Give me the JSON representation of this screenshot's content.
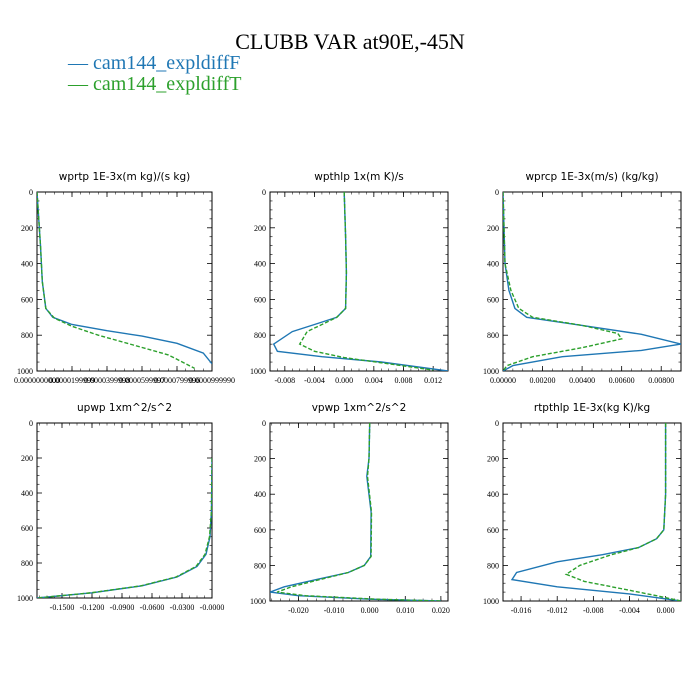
{
  "title": "CLUBB VAR at90E,-45N",
  "legend": [
    {
      "label": "— cam144_expldiffF",
      "color": "#1f77b4"
    },
    {
      "label": "— cam144_expldiffT",
      "color": "#2ca02c"
    }
  ],
  "chart_data": [
    {
      "type": "line",
      "title": "wprtp  1E-3x(m kg)/(s kg)",
      "xlim": [
        0,
        9.9999e-05
      ],
      "ylim": [
        1000,
        0
      ],
      "x_tick_values": [
        0.0,
        1.99999e-05,
        3.99998e-05,
        5.99997e-05,
        7.99996e-05,
        9.9999e-05
      ],
      "x_tick_labels": [
        "0.0000000000",
        "0.0000199999",
        "0.0000399998",
        "0.0000599997",
        "0.0000799996",
        "0.0000999990"
      ],
      "y_tick_values": [
        0,
        200,
        400,
        600,
        800,
        1000
      ],
      "y_tick_labels": [
        "0",
        "200",
        "400",
        "600",
        "800",
        "1000"
      ],
      "series": [
        {
          "name": "cam144_expldiffF",
          "color": "#1f77b4",
          "dashed": false,
          "x": [
            0.0,
            2e-06,
            3e-06,
            5e-06,
            9e-06,
            2e-05,
            4e-05,
            6e-05,
            8e-05,
            9.5e-05,
            0.0001
          ],
          "y": [
            0,
            300,
            500,
            650,
            700,
            740,
            775,
            805,
            845,
            900,
            960
          ]
        },
        {
          "name": "cam144_expldiffT",
          "color": "#2ca02c",
          "dashed": true,
          "x": [
            0.0,
            2e-06,
            3e-06,
            5e-06,
            1e-05,
            2e-05,
            3.5e-05,
            5.5e-05,
            7.5e-05,
            8.5e-05,
            9e-05
          ],
          "y": [
            0,
            300,
            500,
            650,
            705,
            750,
            800,
            855,
            910,
            960,
            985
          ]
        }
      ]
    },
    {
      "type": "line",
      "title": "wpthlp  1x(m K)/s",
      "xlim": [
        -0.01,
        0.014
      ],
      "ylim": [
        1000,
        0
      ],
      "x_tick_values": [
        -0.008,
        -0.004,
        0.0,
        0.004,
        0.008,
        0.012
      ],
      "x_tick_labels": [
        "-0.008",
        "-0.004",
        "0.000",
        "0.004",
        "0.008",
        "0.012"
      ],
      "y_tick_values": [
        0,
        200,
        400,
        600,
        800,
        1000
      ],
      "y_tick_labels": [
        "0",
        "200",
        "400",
        "600",
        "800",
        "1000"
      ],
      "series": [
        {
          "name": "cam144_expldiffF",
          "color": "#1f77b4",
          "dashed": false,
          "x": [
            0.0,
            0.0002,
            0.0003,
            0.0002,
            -0.001,
            -0.004,
            -0.007,
            -0.0095,
            -0.009,
            -0.003,
            0.005,
            0.014
          ],
          "y": [
            0,
            250,
            450,
            650,
            700,
            740,
            780,
            850,
            890,
            920,
            950,
            1000
          ]
        },
        {
          "name": "cam144_expldiffT",
          "color": "#2ca02c",
          "dashed": true,
          "x": [
            0.0,
            0.0002,
            0.0003,
            0.0002,
            -0.001,
            -0.003,
            -0.005,
            -0.006,
            -0.004,
            0.0,
            0.006,
            0.012
          ],
          "y": [
            0,
            250,
            450,
            650,
            700,
            740,
            780,
            850,
            890,
            925,
            960,
            995
          ]
        }
      ]
    },
    {
      "type": "line",
      "title": "wprcp  1E-3x(m/s) (kg/kg)",
      "xlim": [
        0,
        0.009
      ],
      "ylim": [
        1000,
        0
      ],
      "x_tick_values": [
        0.0,
        0.002,
        0.004,
        0.006,
        0.008
      ],
      "x_tick_labels": [
        "0.00000",
        "0.00200",
        "0.00400",
        "0.00600",
        "0.00800"
      ],
      "y_tick_values": [
        0,
        200,
        400,
        600,
        800,
        1000
      ],
      "y_tick_labels": [
        "0",
        "200",
        "400",
        "600",
        "800",
        "1000"
      ],
      "series": [
        {
          "name": "cam144_expldiffF",
          "color": "#1f77b4",
          "dashed": false,
          "x": [
            0.0,
            0.0001,
            0.0003,
            0.0006,
            0.0012,
            0.004,
            0.007,
            0.009,
            0.007,
            0.003,
            0.0005,
            0.0
          ],
          "y": [
            0,
            400,
            550,
            650,
            700,
            745,
            795,
            850,
            885,
            920,
            970,
            1000
          ]
        },
        {
          "name": "cam144_expldiffT",
          "color": "#2ca02c",
          "dashed": true,
          "x": [
            0.0,
            0.0001,
            0.0004,
            0.0008,
            0.0015,
            0.004,
            0.0058,
            0.006,
            0.004,
            0.0015,
            0.0002,
            0.0
          ],
          "y": [
            0,
            400,
            550,
            650,
            700,
            745,
            790,
            820,
            870,
            920,
            970,
            1000
          ]
        }
      ]
    },
    {
      "type": "line",
      "title": "upwp  1xm^2/s^2",
      "xlim": [
        -0.175,
        0.0
      ],
      "ylim": [
        1000,
        0
      ],
      "x_tick_values": [
        -0.15,
        -0.12,
        -0.09,
        -0.06,
        -0.03,
        0.0
      ],
      "x_tick_labels": [
        "-0.1500",
        "-0.1200",
        "-0.0900",
        "-0.0600",
        "-0.0300",
        "-0.0000"
      ],
      "y_tick_values": [
        0,
        200,
        400,
        600,
        800,
        1000
      ],
      "y_tick_labels": [
        "0",
        "200",
        "400",
        "600",
        "800",
        "1000"
      ],
      "series": [
        {
          "name": "cam144_expldiffF",
          "color": "#1f77b4",
          "dashed": false,
          "x": [
            0.0,
            -0.0005,
            -0.002,
            -0.006,
            -0.015,
            -0.035,
            -0.07,
            -0.12,
            -0.175
          ],
          "y": [
            200,
            500,
            650,
            750,
            820,
            880,
            930,
            970,
            1000
          ]
        },
        {
          "name": "cam144_expldiffT",
          "color": "#2ca02c",
          "dashed": true,
          "x": [
            0.0,
            -0.0005,
            -0.0025,
            -0.007,
            -0.016,
            -0.036,
            -0.071,
            -0.121,
            -0.175
          ],
          "y": [
            200,
            500,
            650,
            750,
            820,
            880,
            930,
            970,
            1000
          ]
        }
      ]
    },
    {
      "type": "line",
      "title": "vpwp  1xm^2/s^2",
      "xlim": [
        -0.028,
        0.022
      ],
      "ylim": [
        1000,
        0
      ],
      "x_tick_values": [
        -0.02,
        -0.01,
        0.0,
        0.01,
        0.02
      ],
      "x_tick_labels": [
        "-0.020",
        "-0.010",
        "0.000",
        "0.010",
        "0.020"
      ],
      "y_tick_values": [
        0,
        200,
        400,
        600,
        800,
        1000
      ],
      "y_tick_labels": [
        "0",
        "200",
        "400",
        "600",
        "800",
        "1000"
      ],
      "series": [
        {
          "name": "cam144_expldiffF",
          "color": "#1f77b4",
          "dashed": false,
          "x": [
            0.0,
            -0.0002,
            -0.0008,
            0.0004,
            0.0003,
            -0.0015,
            -0.006,
            -0.015,
            -0.024,
            -0.028,
            -0.02,
            0.0,
            0.02
          ],
          "y": [
            0,
            200,
            300,
            500,
            750,
            800,
            840,
            880,
            920,
            950,
            970,
            990,
            1000
          ]
        },
        {
          "name": "cam144_expldiffT",
          "color": "#2ca02c",
          "dashed": true,
          "x": [
            0.0,
            -0.0002,
            -0.0006,
            0.0005,
            0.0004,
            -0.0015,
            -0.006,
            -0.014,
            -0.022,
            -0.026,
            -0.018,
            0.002,
            0.02
          ],
          "y": [
            0,
            200,
            300,
            500,
            750,
            800,
            840,
            880,
            920,
            950,
            970,
            990,
            1000
          ]
        }
      ]
    },
    {
      "type": "line",
      "title": "rtpthlp  1E-3x(kg K)/kg",
      "xlim": [
        -0.018,
        0.0017
      ],
      "ylim": [
        1000,
        0
      ],
      "x_tick_values": [
        -0.016,
        -0.012,
        -0.008,
        -0.004,
        0.0
      ],
      "x_tick_labels": [
        "-0.016",
        "-0.012",
        "-0.008",
        "-0.004",
        "0.000"
      ],
      "y_tick_values": [
        0,
        200,
        400,
        600,
        800,
        1000
      ],
      "y_tick_labels": [
        "0",
        "200",
        "400",
        "600",
        "800",
        "1000"
      ],
      "series": [
        {
          "name": "cam144_expldiffF",
          "color": "#1f77b4",
          "dashed": false,
          "x": [
            0.0,
            0.0,
            -0.0002,
            -0.001,
            -0.003,
            -0.007,
            -0.012,
            -0.0165,
            -0.017,
            -0.012,
            -0.004,
            0.0017
          ],
          "y": [
            0,
            400,
            600,
            650,
            700,
            740,
            780,
            840,
            880,
            920,
            960,
            1000
          ]
        },
        {
          "name": "cam144_expldiffT",
          "color": "#2ca02c",
          "dashed": true,
          "x": [
            0.0,
            0.0,
            -0.0002,
            -0.001,
            -0.003,
            -0.006,
            -0.0095,
            -0.011,
            -0.009,
            -0.005,
            -0.001,
            0.0017
          ],
          "y": [
            0,
            400,
            600,
            650,
            700,
            740,
            800,
            850,
            890,
            930,
            970,
            1000
          ]
        }
      ]
    }
  ]
}
